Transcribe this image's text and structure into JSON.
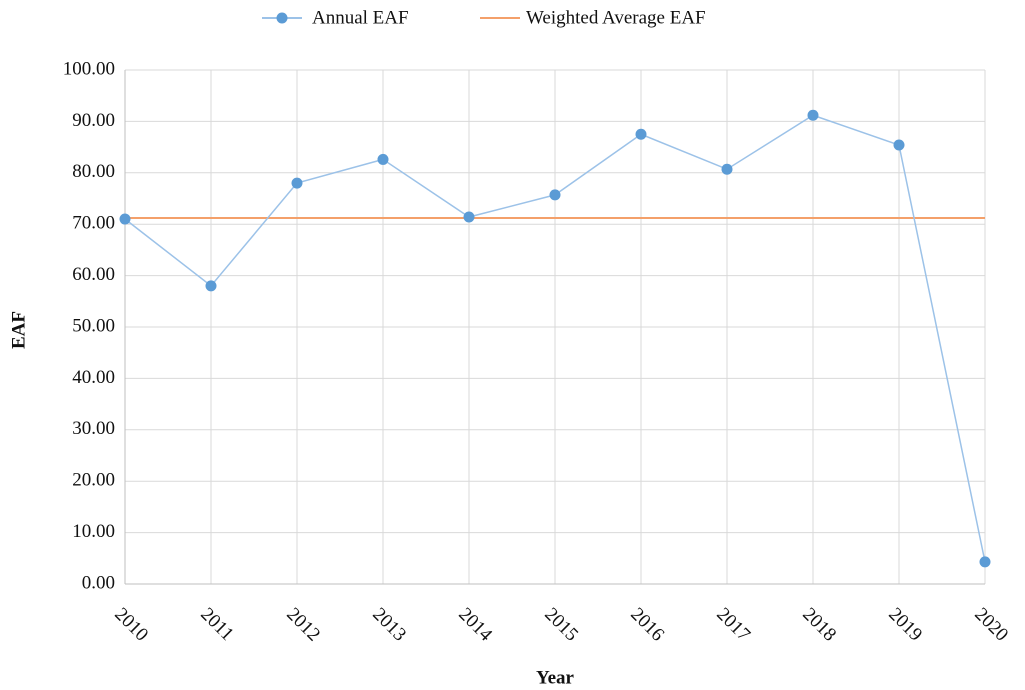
{
  "chart_data": {
    "type": "line",
    "x_label": "Year",
    "y_label": "EAF",
    "categories": [
      "2010",
      "2011",
      "2012",
      "2013",
      "2014",
      "2015",
      "2016",
      "2017",
      "2018",
      "2019",
      "2020"
    ],
    "series": [
      {
        "name": "Annual EAF",
        "color": "#5b9bd5",
        "values": [
          71.0,
          58.0,
          78.0,
          82.6,
          71.4,
          75.7,
          87.5,
          80.7,
          91.2,
          85.4,
          4.3
        ]
      }
    ],
    "reference_lines": [
      {
        "name": "Weighted Average EAF",
        "color": "#f4a06a",
        "value": 71.2
      }
    ],
    "ylim": [
      0,
      100
    ],
    "yticks": [
      {
        "value": 0,
        "label": "0.00"
      },
      {
        "value": 10,
        "label": "10.00"
      },
      {
        "value": 20,
        "label": "20.00"
      },
      {
        "value": 30,
        "label": "30.00"
      },
      {
        "value": 40,
        "label": "40.00"
      },
      {
        "value": 50,
        "label": "50.00"
      },
      {
        "value": 60,
        "label": "60.00"
      },
      {
        "value": 70,
        "label": "70.00"
      },
      {
        "value": 80,
        "label": "80.00"
      },
      {
        "value": 90,
        "label": "90.00"
      },
      {
        "value": 100,
        "label": "100.00"
      }
    ],
    "grid": true,
    "legend": "top"
  }
}
